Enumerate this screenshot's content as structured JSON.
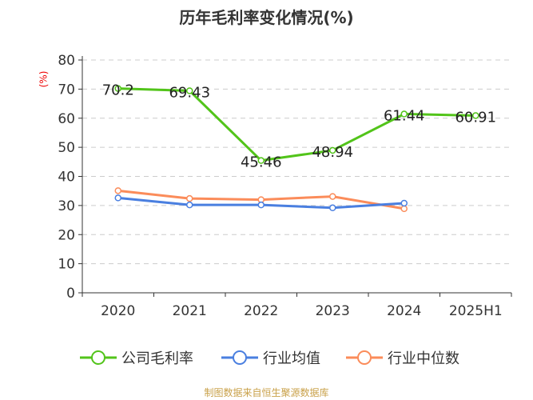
{
  "chart_data": {
    "type": "line",
    "title": "历年毛利率变化情况(%)",
    "ylabel": "(%)",
    "categories": [
      "2020",
      "2021",
      "2022",
      "2023",
      "2024",
      "2025H1"
    ],
    "ylim": [
      0,
      80
    ],
    "yticks": [
      0,
      10,
      20,
      30,
      40,
      50,
      60,
      70,
      80
    ],
    "grid": true,
    "legend_position": "bottom",
    "series": [
      {
        "name": "公司毛利率",
        "color": "#52c41a",
        "values": [
          70.2,
          69.43,
          45.46,
          48.94,
          61.44,
          60.91
        ],
        "labels": [
          "70.2",
          "69.43",
          "45.46",
          "48.94",
          "61.44",
          "60.91"
        ]
      },
      {
        "name": "行业均值",
        "color": "#4a7fe0",
        "values": [
          32.6,
          30.2,
          30.2,
          29.2,
          30.8,
          null
        ]
      },
      {
        "name": "行业中位数",
        "color": "#fb8c5a",
        "values": [
          35.1,
          32.4,
          32.0,
          33.1,
          28.9,
          null
        ]
      }
    ]
  },
  "source": "制图数据来自恒生聚源数据库"
}
